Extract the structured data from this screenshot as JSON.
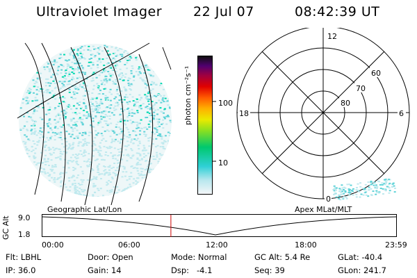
{
  "header": {
    "instrument": "Ultraviolet Imager",
    "date": "22 Jul 07",
    "time": "08:42:39 UT"
  },
  "colorbar": {
    "unit_label": "photon cm⁻²s⁻¹",
    "ticks": [
      {
        "value": 10,
        "label": "10"
      },
      {
        "value": 100,
        "label": "100"
      }
    ],
    "range": [
      2,
      1000
    ],
    "scale": "log"
  },
  "polar_plot": {
    "mlt_labels": [
      {
        "label": "12",
        "pos": "top"
      },
      {
        "label": "18",
        "pos": "left"
      },
      {
        "label": "6",
        "pos": "right"
      },
      {
        "label": "0",
        "pos": "bottom"
      }
    ],
    "lat_rings": [
      {
        "label": "60",
        "value": 60
      },
      {
        "label": "70",
        "value": 70
      },
      {
        "label": "80",
        "value": 80
      }
    ]
  },
  "altitude_plot": {
    "ylabel": "GC Alt",
    "yticks": [
      "9.0",
      "1.8"
    ],
    "left_title": "Geographic Lat/Lon",
    "right_title": "Apex MLat/MLT",
    "xticks": [
      "00:00",
      "06:00",
      "12:00",
      "18:00",
      "23:59"
    ],
    "current_time_hours": 8.71
  },
  "status": {
    "filter": {
      "label": "Flt:",
      "value": "LBHL"
    },
    "ip": {
      "label": "IP:",
      "value": "36.0"
    },
    "door": {
      "label": "Door:",
      "value": "Open"
    },
    "gain": {
      "label": "Gain:",
      "value": "14"
    },
    "mode": {
      "label": "Mode:",
      "value": "Normal"
    },
    "dsp": {
      "label": "Dsp:",
      "value": "-4.1"
    },
    "gc_alt": {
      "label": "GC Alt:",
      "value": "5.4 Re"
    },
    "seq": {
      "label": "Seq:",
      "value": "39"
    },
    "glat": {
      "label": "GLat:",
      "value": "-40.4"
    },
    "glon": {
      "label": "GLon:",
      "value": "241.7"
    }
  },
  "colors": {
    "marker": "#cc0000",
    "speckle_light": "#bfe9ee",
    "speckle_mid": "#5fd3d8",
    "speckle_strong": "#00d9b0"
  }
}
